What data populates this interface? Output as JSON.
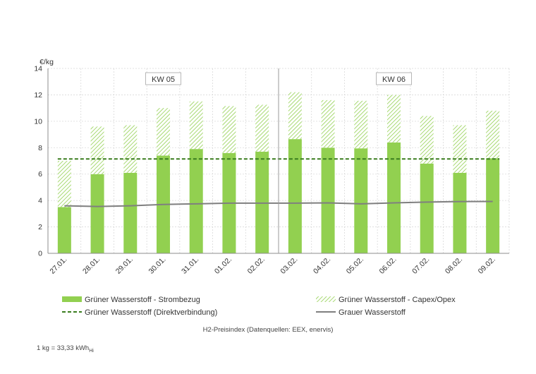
{
  "chart_data": {
    "type": "bar",
    "ylabel": "€/kg",
    "ylim": [
      0,
      14
    ],
    "yticks": [
      0,
      2,
      4,
      6,
      8,
      10,
      12,
      14
    ],
    "grid": true,
    "categories": [
      "27.01.",
      "28.01.",
      "29.01.",
      "30.01.",
      "31.01.",
      "01.02.",
      "02.02.",
      "03.02.",
      "04.02.",
      "05.02.",
      "06.02.",
      "07.02.",
      "08.02.",
      "09.02."
    ],
    "week_labels": [
      {
        "label": "KW 05",
        "from": "27.01.",
        "to": "02.02."
      },
      {
        "label": "KW 06",
        "from": "03.02.",
        "to": "09.02."
      }
    ],
    "series": [
      {
        "name": "Grüner Wasserstoff - Strombezug",
        "kind": "bar-stacked",
        "color": "#92d050",
        "values": [
          3.5,
          6.0,
          6.1,
          7.4,
          7.9,
          7.6,
          7.7,
          8.65,
          8.0,
          7.95,
          8.4,
          6.8,
          6.1,
          7.2
        ]
      },
      {
        "name": "Grüner Wasserstoff - Capex/Opex",
        "kind": "bar-stacked-hatched",
        "color": "#92d050",
        "values": [
          3.5,
          3.6,
          3.6,
          3.6,
          3.6,
          3.55,
          3.55,
          3.55,
          3.6,
          3.6,
          3.6,
          3.6,
          3.6,
          3.6
        ]
      },
      {
        "name": "Grüner Wasserstoff (Direktverbindung)",
        "kind": "line-dashed",
        "color": "#3a7d1e",
        "values": [
          7.15,
          7.15,
          7.15,
          7.15,
          7.15,
          7.15,
          7.15,
          7.15,
          7.15,
          7.15,
          7.15,
          7.15,
          7.15,
          7.15
        ]
      },
      {
        "name": "Grauer Wasserstoff",
        "kind": "line",
        "color": "#7f7f7f",
        "values": [
          3.6,
          3.55,
          3.6,
          3.7,
          3.75,
          3.8,
          3.8,
          3.8,
          3.82,
          3.75,
          3.82,
          3.88,
          3.92,
          3.93
        ]
      }
    ],
    "legend_placement": "bottom"
  },
  "caption": "H2-Preisindex (Datenquellen: EEX, enervis)",
  "footnote": {
    "text": "1 kg = 33,33 kWh",
    "subscript": "Hi"
  }
}
